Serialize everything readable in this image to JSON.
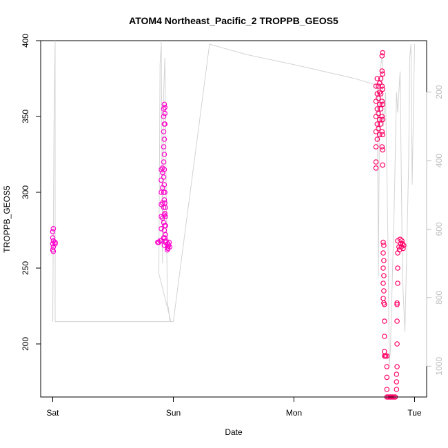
{
  "chart_data": {
    "type": "scatter",
    "title": "ATOM4 Northeast_Pacific_2 TROPPB_GEOS5",
    "xlabel": "Date",
    "ylabel": "TROPPB_GEOS5",
    "x_unit": "days from Sat 00:00",
    "xlim": [
      -0.1,
      3.1
    ],
    "ylim": [
      165,
      400
    ],
    "x_ticks": [
      {
        "value": 0,
        "label": "Sat"
      },
      {
        "value": 1,
        "label": "Sun"
      },
      {
        "value": 2,
        "label": "Mon"
      },
      {
        "value": 3,
        "label": "Tue"
      }
    ],
    "y_ticks": [
      {
        "value": 200,
        "label": "200"
      },
      {
        "value": 250,
        "label": "250"
      },
      {
        "value": 300,
        "label": "300"
      },
      {
        "value": 350,
        "label": "350"
      },
      {
        "value": 400,
        "label": "400"
      }
    ],
    "y2_ticks": [
      {
        "value": 200,
        "label": "200"
      },
      {
        "value": 400,
        "label": "400"
      },
      {
        "value": 600,
        "label": "600"
      },
      {
        "value": 800,
        "label": "800"
      },
      {
        "value": 1000,
        "label": "1000"
      }
    ],
    "y2lim_reversed": [
      50,
      1090
    ],
    "series": [
      {
        "kind": "points",
        "color": "#ff00cc",
        "points": [
          [
            0.0,
            262
          ],
          [
            0.0,
            266
          ],
          [
            0.0,
            270
          ],
          [
            0.0,
            274
          ],
          [
            0.005,
            261
          ],
          [
            0.005,
            264
          ],
          [
            0.005,
            268
          ],
          [
            0.005,
            276
          ],
          [
            0.02,
            266
          ],
          [
            0.02,
            267
          ],
          [
            0.87,
            267
          ],
          [
            0.88,
            267
          ],
          [
            0.89,
            268
          ],
          [
            0.9,
            268
          ],
          [
            0.9,
            276
          ],
          [
            0.9,
            284
          ],
          [
            0.9,
            292
          ],
          [
            0.9,
            300
          ],
          [
            0.9,
            308
          ],
          [
            0.9,
            315
          ],
          [
            0.91,
            313
          ],
          [
            0.91,
            316
          ],
          [
            0.91,
            283
          ],
          [
            0.91,
            293
          ],
          [
            0.91,
            303
          ],
          [
            0.92,
            270
          ],
          [
            0.92,
            280
          ],
          [
            0.92,
            290
          ],
          [
            0.92,
            300
          ],
          [
            0.92,
            310
          ],
          [
            0.92,
            320
          ],
          [
            0.92,
            330
          ],
          [
            0.92,
            340
          ],
          [
            0.92,
            350
          ],
          [
            0.92,
            355
          ],
          [
            0.925,
            265
          ],
          [
            0.925,
            275
          ],
          [
            0.925,
            285
          ],
          [
            0.925,
            295
          ],
          [
            0.925,
            305
          ],
          [
            0.925,
            315
          ],
          [
            0.925,
            325
          ],
          [
            0.925,
            335
          ],
          [
            0.925,
            345
          ],
          [
            0.925,
            358
          ],
          [
            0.93,
            270
          ],
          [
            0.93,
            278
          ],
          [
            0.93,
            286
          ],
          [
            0.93,
            293
          ],
          [
            0.93,
            300
          ],
          [
            0.93,
            345
          ],
          [
            0.93,
            352
          ],
          [
            0.93,
            356
          ],
          [
            0.935,
            267
          ],
          [
            0.935,
            272
          ],
          [
            0.935,
            278
          ],
          [
            0.935,
            284
          ],
          [
            0.935,
            290
          ],
          [
            0.94,
            268
          ],
          [
            0.95,
            262
          ],
          [
            0.95,
            264
          ],
          [
            0.955,
            266
          ],
          [
            0.955,
            263
          ],
          [
            0.96,
            265
          ],
          [
            0.965,
            267
          ],
          [
            0.97,
            264
          ]
        ]
      },
      {
        "kind": "points",
        "color": "#ff0066",
        "points": [
          [
            2.68,
            320
          ],
          [
            2.68,
            330
          ],
          [
            2.68,
            340
          ],
          [
            2.68,
            350
          ],
          [
            2.68,
            360
          ],
          [
            2.68,
            370
          ],
          [
            2.68,
            316
          ],
          [
            2.69,
            335
          ],
          [
            2.69,
            345
          ],
          [
            2.69,
            355
          ],
          [
            2.69,
            365
          ],
          [
            2.69,
            375
          ],
          [
            2.7,
            342
          ],
          [
            2.7,
            352
          ],
          [
            2.7,
            362
          ],
          [
            2.7,
            370
          ],
          [
            2.71,
            338
          ],
          [
            2.71,
            348
          ],
          [
            2.71,
            358
          ],
          [
            2.71,
            366
          ],
          [
            2.71,
            372
          ],
          [
            2.72,
            345
          ],
          [
            2.72,
            355
          ],
          [
            2.72,
            365
          ],
          [
            2.72,
            375
          ],
          [
            2.73,
            330
          ],
          [
            2.73,
            340
          ],
          [
            2.73,
            350
          ],
          [
            2.73,
            360
          ],
          [
            2.73,
            370
          ],
          [
            2.73,
            380
          ],
          [
            2.73,
            390
          ],
          [
            2.735,
            318
          ],
          [
            2.735,
            328
          ],
          [
            2.735,
            338
          ],
          [
            2.735,
            348
          ],
          [
            2.735,
            358
          ],
          [
            2.735,
            368
          ],
          [
            2.735,
            378
          ],
          [
            2.735,
            392
          ],
          [
            2.74,
            267
          ],
          [
            2.74,
            260
          ],
          [
            2.74,
            250
          ],
          [
            2.74,
            240
          ],
          [
            2.74,
            230
          ],
          [
            2.745,
            265
          ],
          [
            2.745,
            255
          ],
          [
            2.745,
            245
          ],
          [
            2.745,
            235
          ],
          [
            2.745,
            227
          ],
          [
            2.75,
            226
          ],
          [
            2.75,
            215
          ],
          [
            2.75,
            205
          ],
          [
            2.75,
            195
          ],
          [
            2.75,
            192
          ],
          [
            2.76,
            192
          ],
          [
            2.77,
            192
          ],
          [
            2.77,
            185
          ],
          [
            2.77,
            178
          ],
          [
            2.77,
            170
          ],
          [
            2.77,
            164
          ],
          [
            2.78,
            164
          ],
          [
            2.79,
            164
          ],
          [
            2.8,
            164
          ],
          [
            2.81,
            164
          ],
          [
            2.82,
            164
          ],
          [
            2.83,
            164
          ],
          [
            2.84,
            164
          ],
          [
            2.85,
            170
          ],
          [
            2.85,
            175
          ],
          [
            2.85,
            180
          ],
          [
            2.855,
            185
          ],
          [
            2.855,
            200
          ],
          [
            2.855,
            215
          ],
          [
            2.855,
            227
          ],
          [
            2.855,
            226
          ],
          [
            2.86,
            240
          ],
          [
            2.86,
            250
          ],
          [
            2.86,
            260
          ],
          [
            2.86,
            268
          ],
          [
            2.87,
            264
          ],
          [
            2.875,
            262
          ],
          [
            2.88,
            269
          ],
          [
            2.885,
            266
          ],
          [
            2.89,
            264
          ],
          [
            2.895,
            268
          ],
          [
            2.9,
            266
          ],
          [
            2.905,
            263
          ],
          [
            2.91,
            265
          ]
        ]
      },
      {
        "kind": "line",
        "color": "#d3d3d3",
        "axis": "y2",
        "points": [
          [
            0.0,
            870
          ],
          [
            0.01,
            300
          ],
          [
            0.02,
            50
          ],
          [
            0.02,
            870
          ],
          [
            0.35,
            870
          ],
          [
            0.65,
            870
          ],
          [
            0.98,
            870
          ],
          [
            0.88,
            730
          ],
          [
            0.89,
            120
          ],
          [
            0.9,
            60
          ],
          [
            0.9,
            50
          ],
          [
            0.91,
            700
          ],
          [
            0.92,
            200
          ],
          [
            0.93,
            100
          ],
          [
            0.95,
            820
          ],
          [
            0.96,
            830
          ],
          [
            0.97,
            870
          ],
          [
            1.0,
            870
          ],
          [
            1.3,
            60
          ],
          [
            1.6,
            90
          ],
          [
            2.0,
            120
          ],
          [
            2.5,
            160
          ],
          [
            2.69,
            180
          ],
          [
            2.7,
            740
          ],
          [
            2.71,
            200
          ],
          [
            2.72,
            120
          ],
          [
            2.73,
            100
          ],
          [
            2.74,
            300
          ],
          [
            2.76,
            200
          ],
          [
            2.78,
            650
          ],
          [
            2.79,
            1000
          ],
          [
            2.8,
            950
          ],
          [
            2.83,
            550
          ],
          [
            2.85,
            200
          ],
          [
            2.86,
            260
          ],
          [
            2.88,
            140
          ],
          [
            2.9,
            740
          ],
          [
            2.92,
            900
          ],
          [
            2.95,
            420
          ],
          [
            2.96,
            100
          ],
          [
            2.97,
            60
          ],
          [
            2.98,
            470
          ],
          [
            3.0,
            60
          ]
        ]
      }
    ],
    "grid": false
  }
}
